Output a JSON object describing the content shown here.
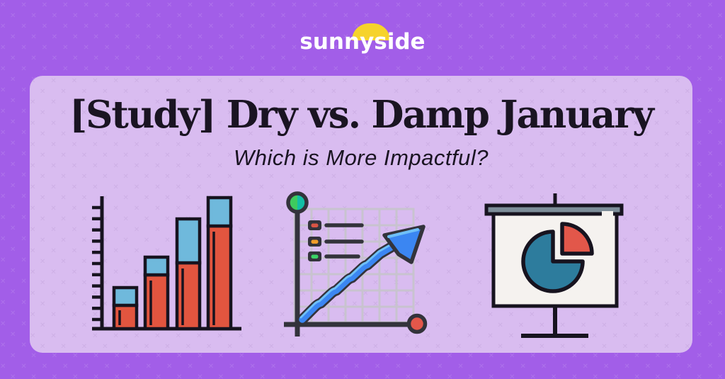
{
  "brand": {
    "name": "sunnyside"
  },
  "hero": {
    "title": "[Study] Dry vs. Damp January",
    "subtitle": "Which is More Impactful?"
  },
  "illustrations": {
    "bar_chart": {
      "name": "bar-chart-illustration",
      "bars": 4,
      "ticks": 11
    },
    "trend_chart": {
      "name": "trend-arrow-chart-illustration",
      "legend_rows": 3
    },
    "presentation": {
      "name": "pie-chart-presentation-illustration"
    }
  },
  "colors": {
    "bg_purple": "#a25ee8",
    "card_lavender": "#d9bcf0",
    "ink": "#1a1422",
    "logo_white": "#ffffff",
    "sun_yellow": "#f6d32b",
    "outline_dark": "#17131f",
    "charcoal": "#33333b",
    "bar_red": "#e2553f",
    "bar_blue": "#6fb9dc",
    "grid_gray": "#c8c3cf",
    "arrow_blue": "#3b86f2",
    "arrow_light_blue": "#6fc0f8",
    "legend_red": "#d95545",
    "legend_orange": "#f09d2a",
    "legend_green": "#3bd166",
    "dot_green": "#3ecb5e",
    "dot_teal": "#12bfa5",
    "dot_red": "#e2574a",
    "pie_teal": "#2d7c9d",
    "pie_red": "#e2574a",
    "board_gray": "#7d8d99",
    "screen_white": "#f5f2ef"
  }
}
